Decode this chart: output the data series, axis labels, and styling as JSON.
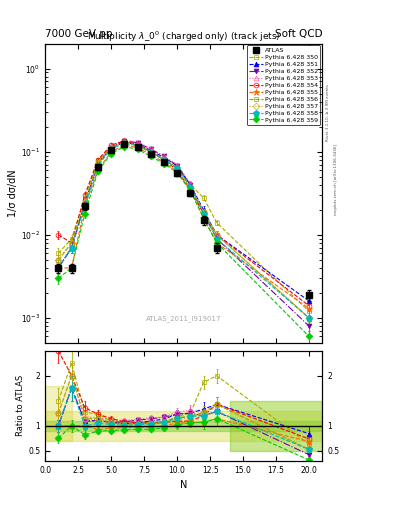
{
  "title_top_left": "7000 GeV pp",
  "title_top_right": "Soft QCD",
  "main_title": "Multiplicity $\\lambda\\_0^0$ (charged only) (track jets)",
  "watermark": "ATLAS_2011_I919017",
  "right_label1": "Rivet 3.1.10, ≥ 2.9M events",
  "right_label2": "mcplots.cern.ch [arXiv:1306.3436]",
  "ylabel_main": "1/σ dσ/dN",
  "ylabel_ratio": "Ratio to ATLAS",
  "xlabel": "N",
  "xlim": [
    0,
    21
  ],
  "ylim_main_log": [
    0.0005,
    2.0
  ],
  "ylim_ratio": [
    0.3,
    2.5
  ],
  "atlas_x": [
    1,
    2,
    3,
    4,
    5,
    6,
    7,
    8,
    9,
    10,
    11,
    12,
    13,
    20
  ],
  "atlas_y": [
    0.004,
    0.004,
    0.022,
    0.065,
    0.105,
    0.125,
    0.115,
    0.095,
    0.075,
    0.055,
    0.032,
    0.015,
    0.007,
    0.0019
  ],
  "atlas_yerr": [
    0.0005,
    0.0005,
    0.002,
    0.004,
    0.005,
    0.006,
    0.006,
    0.005,
    0.004,
    0.004,
    0.003,
    0.002,
    0.001,
    0.0003
  ],
  "series": [
    {
      "label": "Pythia 6.428 350",
      "color": "#aaaa00",
      "linestyle": "--",
      "marker": "s",
      "fillstyle": "none",
      "x": [
        1,
        2,
        3,
        4,
        5,
        6,
        7,
        8,
        9,
        10,
        11,
        12,
        13,
        20
      ],
      "y": [
        0.006,
        0.009,
        0.028,
        0.08,
        0.115,
        0.13,
        0.12,
        0.1,
        0.08,
        0.065,
        0.04,
        0.028,
        0.014,
        0.0012
      ],
      "yerr": [
        0.001,
        0.001,
        0.003,
        0.005,
        0.006,
        0.007,
        0.006,
        0.005,
        0.004,
        0.004,
        0.003,
        0.002,
        0.001,
        0.0003
      ]
    },
    {
      "label": "Pythia 6.428 351",
      "color": "#0000ff",
      "linestyle": "--",
      "marker": "^",
      "fillstyle": "full",
      "x": [
        1,
        2,
        3,
        4,
        5,
        6,
        7,
        8,
        9,
        10,
        11,
        12,
        13,
        20
      ],
      "y": [
        0.004,
        0.007,
        0.024,
        0.072,
        0.112,
        0.13,
        0.122,
        0.104,
        0.085,
        0.068,
        0.04,
        0.02,
        0.01,
        0.0016
      ],
      "yerr": [
        0.0005,
        0.001,
        0.002,
        0.004,
        0.005,
        0.006,
        0.006,
        0.005,
        0.004,
        0.004,
        0.003,
        0.002,
        0.001,
        0.0003
      ]
    },
    {
      "label": "Pythia 6.428 352",
      "color": "#7700aa",
      "linestyle": "-.",
      "marker": "v",
      "fillstyle": "full",
      "x": [
        1,
        2,
        3,
        4,
        5,
        6,
        7,
        8,
        9,
        10,
        11,
        12,
        13,
        20
      ],
      "y": [
        0.004,
        0.007,
        0.024,
        0.072,
        0.112,
        0.135,
        0.128,
        0.108,
        0.088,
        0.068,
        0.04,
        0.018,
        0.009,
        0.0008
      ],
      "yerr": [
        0.0005,
        0.001,
        0.002,
        0.004,
        0.005,
        0.007,
        0.006,
        0.005,
        0.004,
        0.004,
        0.003,
        0.002,
        0.001,
        0.0003
      ]
    },
    {
      "label": "Pythia 6.428 353",
      "color": "#ff55aa",
      "linestyle": ":",
      "marker": "^",
      "fillstyle": "none",
      "x": [
        1,
        2,
        3,
        4,
        5,
        6,
        7,
        8,
        9,
        10,
        11,
        12,
        13,
        20
      ],
      "y": [
        0.005,
        0.008,
        0.026,
        0.075,
        0.118,
        0.138,
        0.13,
        0.11,
        0.088,
        0.07,
        0.042,
        0.019,
        0.01,
        0.001
      ],
      "yerr": [
        0.0008,
        0.001,
        0.003,
        0.005,
        0.006,
        0.007,
        0.006,
        0.005,
        0.004,
        0.004,
        0.003,
        0.002,
        0.001,
        0.0003
      ]
    },
    {
      "label": "Pythia 6.428 354",
      "color": "#ff0000",
      "linestyle": "--",
      "marker": "o",
      "fillstyle": "none",
      "x": [
        1,
        2,
        3,
        4,
        5,
        6,
        7,
        8,
        9,
        10,
        11,
        12,
        13,
        20
      ],
      "y": [
        0.01,
        0.008,
        0.03,
        0.08,
        0.12,
        0.135,
        0.122,
        0.1,
        0.08,
        0.06,
        0.035,
        0.018,
        0.01,
        0.0014
      ],
      "yerr": [
        0.001,
        0.001,
        0.003,
        0.005,
        0.006,
        0.007,
        0.006,
        0.005,
        0.004,
        0.004,
        0.003,
        0.002,
        0.001,
        0.0003
      ]
    },
    {
      "label": "Pythia 6.428 355",
      "color": "#ff6600",
      "linestyle": "--",
      "marker": "*",
      "fillstyle": "full",
      "x": [
        1,
        2,
        3,
        4,
        5,
        6,
        7,
        8,
        9,
        10,
        11,
        12,
        13,
        20
      ],
      "y": [
        0.004,
        0.004,
        0.022,
        0.06,
        0.1,
        0.12,
        0.112,
        0.092,
        0.075,
        0.058,
        0.034,
        0.016,
        0.008,
        0.0013
      ],
      "yerr": [
        0.0005,
        0.0005,
        0.002,
        0.004,
        0.005,
        0.006,
        0.006,
        0.005,
        0.004,
        0.004,
        0.003,
        0.002,
        0.001,
        0.0003
      ]
    },
    {
      "label": "Pythia 6.428 356",
      "color": "#88aa00",
      "linestyle": "--",
      "marker": "s",
      "fillstyle": "none",
      "x": [
        1,
        2,
        3,
        4,
        5,
        6,
        7,
        8,
        9,
        10,
        11,
        12,
        13,
        20
      ],
      "y": [
        0.005,
        0.008,
        0.025,
        0.075,
        0.112,
        0.13,
        0.12,
        0.1,
        0.082,
        0.064,
        0.038,
        0.019,
        0.01,
        0.001
      ],
      "yerr": [
        0.0008,
        0.001,
        0.003,
        0.005,
        0.006,
        0.007,
        0.006,
        0.005,
        0.004,
        0.004,
        0.003,
        0.002,
        0.001,
        0.0003
      ]
    },
    {
      "label": "Pythia 6.428 357",
      "color": "#ddaa00",
      "linestyle": ":",
      "marker": "D",
      "fillstyle": "none",
      "x": [
        1,
        2,
        3,
        4,
        5,
        6,
        7,
        8,
        9,
        10,
        11,
        12,
        13,
        20
      ],
      "y": [
        0.005,
        0.008,
        0.025,
        0.073,
        0.11,
        0.128,
        0.118,
        0.098,
        0.08,
        0.062,
        0.037,
        0.019,
        0.01,
        0.001
      ],
      "yerr": [
        0.0008,
        0.001,
        0.003,
        0.005,
        0.006,
        0.007,
        0.006,
        0.005,
        0.004,
        0.004,
        0.003,
        0.002,
        0.001,
        0.0003
      ]
    },
    {
      "label": "Pythia 6.428 358",
      "color": "#00bbbb",
      "linestyle": "--",
      "marker": "p",
      "fillstyle": "full",
      "x": [
        1,
        2,
        3,
        4,
        5,
        6,
        7,
        8,
        9,
        10,
        11,
        12,
        13,
        20
      ],
      "y": [
        0.004,
        0.007,
        0.022,
        0.068,
        0.108,
        0.126,
        0.118,
        0.098,
        0.08,
        0.063,
        0.038,
        0.018,
        0.009,
        0.001
      ],
      "yerr": [
        0.0005,
        0.001,
        0.002,
        0.004,
        0.005,
        0.006,
        0.006,
        0.005,
        0.004,
        0.004,
        0.003,
        0.002,
        0.001,
        0.0003
      ]
    },
    {
      "label": "Pythia 6.428 359",
      "color": "#00cc00",
      "linestyle": "--",
      "marker": "D",
      "fillstyle": "full",
      "x": [
        1,
        2,
        3,
        4,
        5,
        6,
        7,
        8,
        9,
        10,
        11,
        12,
        13,
        20
      ],
      "y": [
        0.003,
        0.004,
        0.018,
        0.058,
        0.095,
        0.115,
        0.107,
        0.088,
        0.072,
        0.056,
        0.034,
        0.016,
        0.008,
        0.0006
      ],
      "yerr": [
        0.0004,
        0.0005,
        0.002,
        0.004,
        0.005,
        0.006,
        0.006,
        0.005,
        0.004,
        0.004,
        0.003,
        0.002,
        0.001,
        0.0003
      ]
    }
  ]
}
